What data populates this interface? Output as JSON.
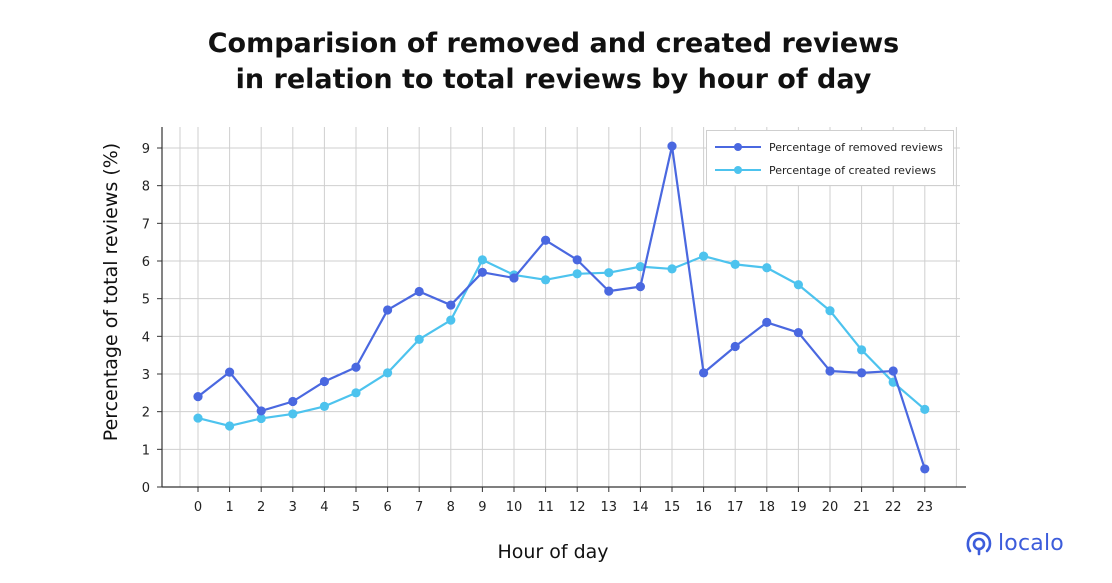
{
  "title_line1": "Comparision of removed and created reviews",
  "title_line2": "in relation to total reviews by hour of day",
  "logo_text": "localo",
  "chart_data": {
    "type": "line",
    "title": "Comparision of removed and created reviews in relation to total reviews by hour of day",
    "xlabel": "Hour of day",
    "ylabel": "Percentage of total reviews (%)",
    "x": [
      0,
      1,
      2,
      3,
      4,
      5,
      6,
      7,
      8,
      9,
      10,
      11,
      12,
      13,
      14,
      15,
      16,
      17,
      18,
      19,
      20,
      21,
      22,
      23
    ],
    "ylim": [
      0,
      9
    ],
    "yticks": [
      0,
      1,
      2,
      3,
      4,
      5,
      6,
      7,
      8,
      9
    ],
    "grid": true,
    "legend_position": "top-right",
    "series": [
      {
        "name": "Percentage of removed reviews",
        "color": "#4A68E0",
        "values": [
          2.4,
          3.05,
          2.02,
          2.27,
          2.8,
          3.18,
          4.7,
          5.19,
          4.83,
          5.7,
          5.55,
          6.55,
          6.03,
          5.2,
          5.32,
          9.05,
          3.03,
          3.73,
          4.37,
          4.1,
          3.08,
          3.03,
          3.08,
          0.48
        ]
      },
      {
        "name": "Percentage of created reviews",
        "color": "#4DC3EE",
        "values": [
          1.83,
          1.62,
          1.82,
          1.94,
          2.14,
          2.5,
          3.03,
          3.92,
          4.43,
          6.03,
          5.63,
          5.5,
          5.66,
          5.69,
          5.85,
          5.79,
          6.13,
          5.91,
          5.82,
          5.37,
          4.68,
          3.64,
          2.78,
          2.06
        ]
      }
    ]
  }
}
